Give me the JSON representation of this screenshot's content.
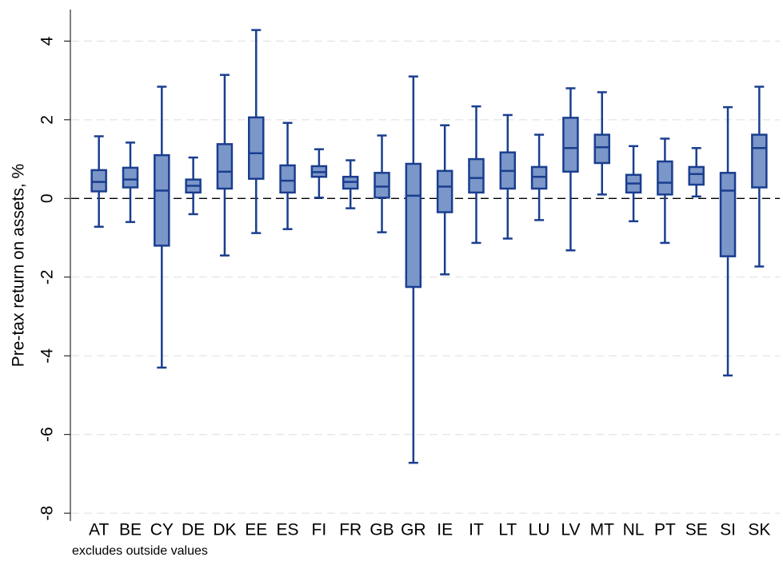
{
  "chart_data": {
    "type": "box",
    "y_label": "Pre-tax return on assets, %",
    "note": "excludes outside values",
    "categories": [
      "AT",
      "BE",
      "CY",
      "DE",
      "DK",
      "EE",
      "ES",
      "FI",
      "FR",
      "GB",
      "GR",
      "IE",
      "IT",
      "LT",
      "LU",
      "LV",
      "MT",
      "NL",
      "PT",
      "SE",
      "SI",
      "SK"
    ],
    "whisker_low": [
      -0.72,
      -0.6,
      -4.3,
      -0.4,
      -1.45,
      -0.88,
      -0.78,
      0.02,
      -0.25,
      -0.86,
      -6.72,
      -1.93,
      -1.13,
      -1.02,
      -0.55,
      -1.32,
      0.1,
      -0.58,
      -1.13,
      0.05,
      -4.5,
      -1.73
    ],
    "q1": [
      0.18,
      0.28,
      -1.2,
      0.15,
      0.25,
      0.5,
      0.15,
      0.55,
      0.25,
      0.02,
      -2.25,
      -0.35,
      0.15,
      0.25,
      0.25,
      0.68,
      0.9,
      0.15,
      0.1,
      0.35,
      -1.47,
      0.28
    ],
    "median": [
      0.42,
      0.48,
      0.2,
      0.32,
      0.68,
      1.15,
      0.45,
      0.67,
      0.42,
      0.3,
      0.07,
      0.3,
      0.52,
      0.7,
      0.55,
      1.28,
      1.3,
      0.38,
      0.4,
      0.62,
      0.2,
      1.28
    ],
    "q3": [
      0.72,
      0.78,
      1.1,
      0.48,
      1.38,
      2.06,
      0.84,
      0.82,
      0.55,
      0.65,
      0.88,
      0.7,
      1.0,
      1.17,
      0.8,
      2.05,
      1.62,
      0.6,
      0.94,
      0.8,
      0.65,
      1.62
    ],
    "whisker_high": [
      1.58,
      1.42,
      2.84,
      1.04,
      3.14,
      4.28,
      1.92,
      1.25,
      0.97,
      1.6,
      3.1,
      1.86,
      2.34,
      2.12,
      1.62,
      2.8,
      2.7,
      1.33,
      1.52,
      1.28,
      2.32,
      2.84
    ],
    "color": "#7b96c8",
    "edge_color": "#1a3e8f",
    "ylim": [
      -8.2,
      4.8
    ],
    "yticks": [
      -8,
      -6,
      -4,
      -2,
      0,
      2,
      4
    ],
    "grid": true,
    "reference_line": 0
  }
}
